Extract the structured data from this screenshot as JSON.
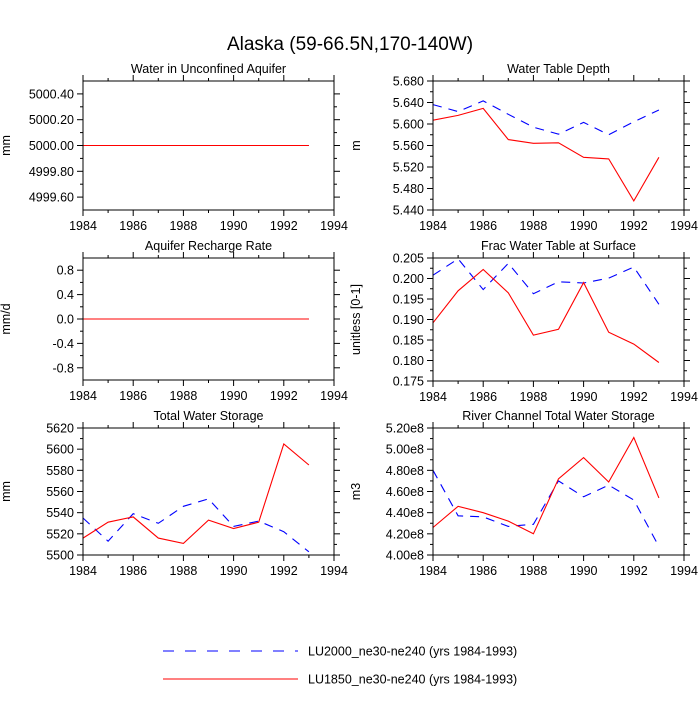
{
  "title": "Alaska (59-66.5N,170-140W)",
  "legend": {
    "entries": [
      {
        "name": "LU2000_ne30-ne240 (yrs 1984-1993)",
        "color": "#0000ff",
        "dash": "dashed"
      },
      {
        "name": "LU1850_ne30-ne240 (yrs 1984-1993)",
        "color": "#ff0000",
        "dash": "solid"
      }
    ]
  },
  "chart_data": [
    {
      "type": "line",
      "title": "Water in Unconfined Aquifer",
      "xlabel": "",
      "ylabel": "mm",
      "x": [
        1984,
        1985,
        1986,
        1987,
        1988,
        1989,
        1990,
        1991,
        1992,
        1993
      ],
      "xlim": [
        1984,
        1994
      ],
      "xticks": [
        1984,
        1986,
        1988,
        1990,
        1992,
        1994
      ],
      "ylim": [
        4999.5,
        5000.5
      ],
      "yticks": [
        4999.6,
        4999.8,
        5000.0,
        5000.2,
        5000.4
      ],
      "ytick_labels": [
        "4999.60",
        "4999.80",
        "5000.00",
        "5000.20",
        "5000.40"
      ],
      "series": [
        {
          "name": "LU2000_ne30-ne240 (yrs 1984-1993)",
          "values": [
            5000,
            5000,
            5000,
            5000,
            5000,
            5000,
            5000,
            5000,
            5000,
            5000
          ]
        },
        {
          "name": "LU1850_ne30-ne240 (yrs 1984-1993)",
          "values": [
            5000,
            5000,
            5000,
            5000,
            5000,
            5000,
            5000,
            5000,
            5000,
            5000
          ]
        }
      ]
    },
    {
      "type": "line",
      "title": "Water Table Depth",
      "xlabel": "",
      "ylabel": "m",
      "x": [
        1984,
        1985,
        1986,
        1987,
        1988,
        1989,
        1990,
        1991,
        1992,
        1993
      ],
      "xlim": [
        1984,
        1994
      ],
      "xticks": [
        1984,
        1986,
        1988,
        1990,
        1992,
        1994
      ],
      "ylim": [
        5.44,
        5.68
      ],
      "yticks": [
        5.44,
        5.48,
        5.52,
        5.56,
        5.6,
        5.64,
        5.68
      ],
      "ytick_labels": [
        "5.440",
        "5.480",
        "5.520",
        "5.560",
        "5.600",
        "5.640",
        "5.680"
      ],
      "series": [
        {
          "name": "LU2000_ne30-ne240 (yrs 1984-1993)",
          "values": [
            5.636,
            5.623,
            5.643,
            5.618,
            5.594,
            5.581,
            5.603,
            5.58,
            5.604,
            5.626
          ]
        },
        {
          "name": "LU1850_ne30-ne240 (yrs 1984-1993)",
          "values": [
            5.607,
            5.616,
            5.629,
            5.571,
            5.564,
            5.565,
            5.538,
            5.535,
            5.457,
            5.538
          ]
        }
      ]
    },
    {
      "type": "line",
      "title": "Aquifer Recharge Rate",
      "xlabel": "",
      "ylabel": "mm/d",
      "x": [
        1984,
        1985,
        1986,
        1987,
        1988,
        1989,
        1990,
        1991,
        1992,
        1993
      ],
      "xlim": [
        1984,
        1994
      ],
      "xticks": [
        1984,
        1986,
        1988,
        1990,
        1992,
        1994
      ],
      "ylim": [
        -1.0,
        1.0
      ],
      "yticks": [
        -0.8,
        -0.4,
        0.0,
        0.4,
        0.8
      ],
      "ytick_labels": [
        "-0.8",
        "-0.4",
        "0.0",
        "0.4",
        "0.8"
      ],
      "series": [
        {
          "name": "LU2000_ne30-ne240 (yrs 1984-1993)",
          "values": [
            0,
            0,
            0,
            0,
            0,
            0,
            0,
            0,
            0,
            0
          ]
        },
        {
          "name": "LU1850_ne30-ne240 (yrs 1984-1993)",
          "values": [
            0,
            0,
            0,
            0,
            0,
            0,
            0,
            0,
            0,
            0
          ]
        }
      ]
    },
    {
      "type": "line",
      "title": "Frac Water Table at Surface",
      "xlabel": "",
      "ylabel": "unitless [0-1]",
      "x": [
        1984,
        1985,
        1986,
        1987,
        1988,
        1989,
        1990,
        1991,
        1992,
        1993
      ],
      "xlim": [
        1984,
        1994
      ],
      "xticks": [
        1984,
        1986,
        1988,
        1990,
        1992,
        1994
      ],
      "ylim": [
        0.175,
        0.205
      ],
      "yticks": [
        0.175,
        0.18,
        0.185,
        0.19,
        0.195,
        0.2,
        0.205
      ],
      "ytick_labels": [
        "0.175",
        "0.180",
        "0.185",
        "0.190",
        "0.195",
        "0.200",
        "0.205"
      ],
      "series": [
        {
          "name": "LU2000_ne30-ne240 (yrs 1984-1993)",
          "values": [
            0.2008,
            0.2048,
            0.1973,
            0.2037,
            0.1963,
            0.1992,
            0.1989,
            0.2001,
            0.2028,
            0.1937
          ]
        },
        {
          "name": "LU1850_ne30-ne240 (yrs 1984-1993)",
          "values": [
            0.1892,
            0.197,
            0.2022,
            0.1965,
            0.1862,
            0.1876,
            0.199,
            0.1869,
            0.184,
            0.1795
          ]
        }
      ]
    },
    {
      "type": "line",
      "title": "Total Water Storage",
      "xlabel": "",
      "ylabel": "mm",
      "x": [
        1984,
        1985,
        1986,
        1987,
        1988,
        1989,
        1990,
        1991,
        1992,
        1993
      ],
      "xlim": [
        1984,
        1994
      ],
      "xticks": [
        1984,
        1986,
        1988,
        1990,
        1992,
        1994
      ],
      "ylim": [
        5500,
        5620
      ],
      "yticks": [
        5500,
        5520,
        5540,
        5560,
        5580,
        5600,
        5620
      ],
      "ytick_labels": [
        "5500",
        "5520",
        "5540",
        "5560",
        "5580",
        "5600",
        "5620"
      ],
      "series": [
        {
          "name": "LU2000_ne30-ne240 (yrs 1984-1993)",
          "values": [
            5535,
            5513,
            5539,
            5530,
            5546,
            5553,
            5527,
            5532,
            5522,
            5503
          ]
        },
        {
          "name": "LU1850_ne30-ne240 (yrs 1984-1993)",
          "values": [
            5516,
            5531,
            5536,
            5516,
            5511,
            5533,
            5525,
            5531,
            5605,
            5585
          ]
        }
      ]
    },
    {
      "type": "line",
      "title": "River Channel Total Water Storage",
      "xlabel": "",
      "ylabel": "m3",
      "x": [
        1984,
        1985,
        1986,
        1987,
        1988,
        1989,
        1990,
        1991,
        1992,
        1993
      ],
      "xlim": [
        1984,
        1994
      ],
      "xticks": [
        1984,
        1986,
        1988,
        1990,
        1992,
        1994
      ],
      "ylim": [
        400000000,
        520000000
      ],
      "yticks": [
        400000000,
        420000000,
        440000000,
        460000000,
        480000000,
        500000000,
        520000000
      ],
      "ytick_labels": [
        "4.00e8",
        "4.20e8",
        "4.40e8",
        "4.60e8",
        "4.80e8",
        "5.00e8",
        "5.20e8"
      ],
      "series": [
        {
          "name": "LU2000_ne30-ne240 (yrs 1984-1993)",
          "values": [
            480000000,
            437000000,
            436000000,
            427000000,
            429000000,
            470000000,
            455000000,
            466000000,
            452000000,
            408000000
          ]
        },
        {
          "name": "LU1850_ne30-ne240 (yrs 1984-1993)",
          "values": [
            426000000,
            446000000,
            440000000,
            432000000,
            420000000,
            472000000,
            492000000,
            469000000,
            511000000,
            454000000
          ]
        }
      ]
    }
  ]
}
